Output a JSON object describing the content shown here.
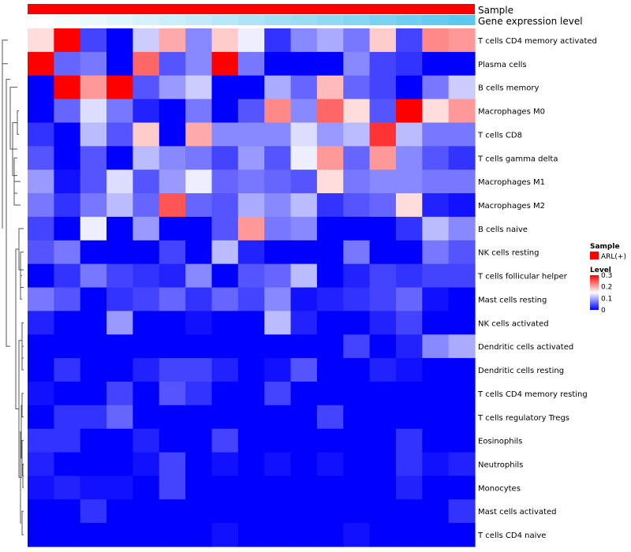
{
  "chart_data": {
    "type": "heatmap",
    "annotations": [
      {
        "name": "Sample",
        "kind": "categorical",
        "color": "#ff0000"
      },
      {
        "name": "Gene expression level",
        "kind": "gradient",
        "colors": [
          "#ffffff",
          "#5bc8ef"
        ]
      }
    ],
    "rows": [
      "T cells CD4 memory activated",
      "Plasma cells",
      "B cells memory",
      "Macrophages M0",
      "T cells CD8",
      "T cells gamma delta",
      "Macrophages M1",
      "Macrophages M2",
      "B cells naive",
      "NK cells resting",
      "T cells follicular helper",
      "Mast cells resting",
      "NK cells activated",
      "Dendritic cells activated",
      "Dendritic cells resting",
      "T cells CD4 memory resting",
      "T cells regulatory  Tregs",
      "Eosinophils",
      "Neutrophils",
      "Monocytes",
      "Mast cells activated",
      "T cells CD4 naive"
    ],
    "n_columns": 17,
    "values": [
      [
        0.17,
        0.3,
        0.04,
        0.0,
        0.12,
        0.2,
        0.08,
        0.18,
        0.14,
        0.03,
        0.08,
        0.1,
        0.07,
        0.18,
        0.04,
        0.22,
        0.21
      ],
      [
        0.3,
        0.06,
        0.07,
        0.0,
        0.24,
        0.05,
        0.08,
        0.3,
        0.07,
        0.0,
        0.0,
        0.0,
        0.08,
        0.04,
        0.03,
        0.0,
        0.0
      ],
      [
        0.0,
        0.3,
        0.21,
        0.3,
        0.05,
        0.09,
        0.12,
        0.0,
        0.0,
        0.1,
        0.06,
        0.19,
        0.06,
        0.04,
        0.0,
        0.07,
        0.12
      ],
      [
        0.0,
        0.06,
        0.13,
        0.07,
        0.02,
        0.0,
        0.07,
        0.0,
        0.05,
        0.22,
        0.08,
        0.24,
        0.17,
        0.05,
        0.3,
        0.17,
        0.21
      ],
      [
        0.03,
        0.0,
        0.11,
        0.05,
        0.18,
        0.0,
        0.2,
        0.08,
        0.08,
        0.08,
        0.13,
        0.09,
        0.11,
        0.27,
        0.11,
        0.07,
        0.07
      ],
      [
        0.05,
        0.0,
        0.05,
        0.0,
        0.11,
        0.08,
        0.07,
        0.04,
        0.09,
        0.05,
        0.14,
        0.21,
        0.06,
        0.21,
        0.08,
        0.05,
        0.03
      ],
      [
        0.09,
        0.01,
        0.05,
        0.13,
        0.05,
        0.09,
        0.14,
        0.06,
        0.07,
        0.06,
        0.05,
        0.17,
        0.07,
        0.08,
        0.08,
        0.07,
        0.07
      ],
      [
        0.07,
        0.03,
        0.07,
        0.11,
        0.06,
        0.25,
        0.06,
        0.05,
        0.1,
        0.08,
        0.11,
        0.03,
        0.05,
        0.06,
        0.17,
        0.02,
        0.01
      ],
      [
        0.04,
        0.0,
        0.14,
        0.0,
        0.09,
        0.0,
        0.0,
        0.05,
        0.21,
        0.07,
        0.08,
        0.0,
        0.0,
        0.0,
        0.03,
        0.11,
        0.08
      ],
      [
        0.05,
        0.07,
        0.0,
        0.0,
        0.0,
        0.04,
        0.0,
        0.11,
        0.02,
        0.0,
        0.0,
        0.0,
        0.07,
        0.0,
        0.0,
        0.07,
        0.05
      ],
      [
        0.0,
        0.03,
        0.07,
        0.04,
        0.03,
        0.02,
        0.08,
        0.0,
        0.05,
        0.06,
        0.11,
        0.0,
        0.02,
        0.04,
        0.03,
        0.04,
        0.04
      ],
      [
        0.07,
        0.05,
        0.0,
        0.03,
        0.04,
        0.06,
        0.03,
        0.06,
        0.04,
        0.08,
        0.01,
        0.02,
        0.03,
        0.04,
        0.06,
        0.01,
        0.0
      ],
      [
        0.02,
        0.0,
        0.0,
        0.09,
        0.0,
        0.0,
        0.01,
        0.0,
        0.0,
        0.11,
        0.02,
        0.0,
        0.0,
        0.02,
        0.04,
        0.0,
        0.0
      ],
      [
        0.0,
        0.0,
        0.0,
        0.0,
        0.0,
        0.0,
        0.0,
        0.0,
        0.0,
        0.0,
        0.0,
        0.0,
        0.04,
        0.0,
        0.02,
        0.08,
        0.1
      ],
      [
        0.0,
        0.03,
        0.0,
        0.0,
        0.02,
        0.04,
        0.04,
        0.02,
        0.0,
        0.01,
        0.05,
        0.0,
        0.0,
        0.02,
        0.01,
        0.0,
        0.0
      ],
      [
        0.01,
        0.0,
        0.0,
        0.04,
        0.0,
        0.05,
        0.03,
        0.0,
        0.0,
        0.04,
        0.0,
        0.0,
        0.0,
        0.0,
        0.0,
        0.0,
        0.0
      ],
      [
        0.0,
        0.03,
        0.03,
        0.06,
        0.0,
        0.0,
        0.0,
        0.0,
        0.0,
        0.0,
        0.0,
        0.04,
        0.0,
        0.0,
        0.0,
        0.0,
        0.0
      ],
      [
        0.03,
        0.03,
        0.0,
        0.0,
        0.02,
        0.0,
        0.0,
        0.04,
        0.0,
        0.0,
        0.0,
        0.0,
        0.0,
        0.0,
        0.03,
        0.0,
        0.0
      ],
      [
        0.02,
        0.0,
        0.0,
        0.0,
        0.01,
        0.04,
        0.0,
        0.01,
        0.0,
        0.01,
        0.0,
        0.01,
        0.0,
        0.0,
        0.03,
        0.01,
        0.02
      ],
      [
        0.01,
        0.02,
        0.01,
        0.01,
        0.0,
        0.04,
        0.0,
        0.0,
        0.0,
        0.0,
        0.0,
        0.0,
        0.0,
        0.0,
        0.02,
        0.0,
        0.0
      ],
      [
        0.0,
        0.0,
        0.03,
        0.0,
        0.0,
        0.0,
        0.0,
        0.0,
        0.0,
        0.0,
        0.0,
        0.0,
        0.0,
        0.0,
        0.0,
        0.0,
        0.03
      ],
      [
        0.0,
        0.0,
        0.0,
        0.0,
        0.0,
        0.0,
        0.0,
        0.01,
        0.0,
        0.0,
        0.0,
        0.0,
        0.01,
        0.0,
        0.0,
        0.0,
        0.0
      ]
    ],
    "color_scale": {
      "min": 0,
      "max": 0.3,
      "low": "#0000ff",
      "mid": "#ffffff",
      "high": "#ff0000",
      "mid_value": 0.15
    },
    "legend": {
      "sample_title": "Sample",
      "sample_entry": "ARL(+)",
      "level_title": "Level",
      "level_ticks": [
        "0.3",
        "0.2",
        "0.1",
        "0"
      ],
      "placement": "right"
    },
    "dendrogram": "left"
  }
}
